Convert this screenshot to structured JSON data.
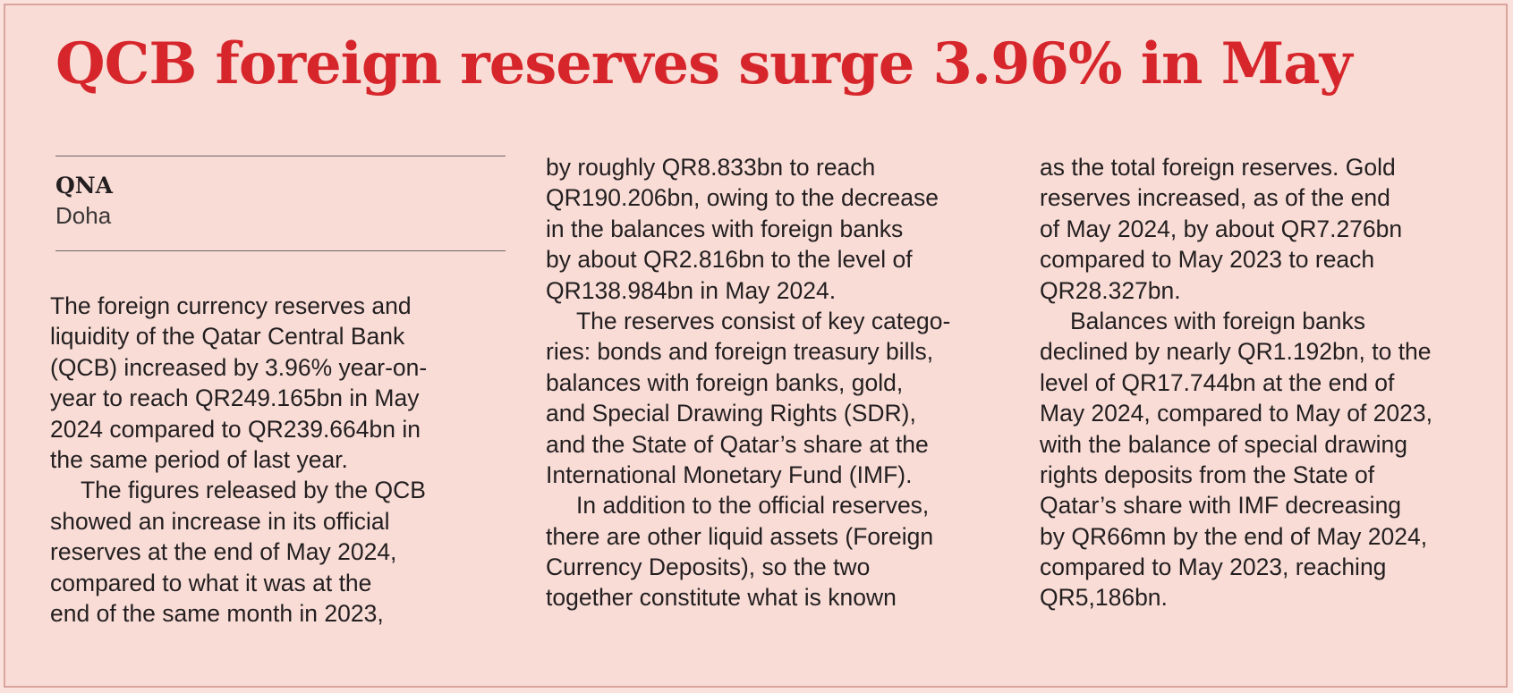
{
  "article": {
    "headline": "QCB foreign reserves surge 3.96% in May",
    "agency": "QNA",
    "dateline": "Doha",
    "columns": [
      [
        {
          "text": "The foreign currency reserves and",
          "indent": false
        },
        {
          "text": "liquidity of the Qatar Central Bank",
          "indent": false
        },
        {
          "text": "(QCB) increased by 3.96% year-on-",
          "indent": false
        },
        {
          "text": "year to reach QR249.165bn in May",
          "indent": false
        },
        {
          "text": "2024 compared to QR239.664bn in",
          "indent": false
        },
        {
          "text": "the same period of last year.",
          "indent": false
        },
        {
          "text": "The figures released by the QCB",
          "indent": true
        },
        {
          "text": "showed an increase in its official",
          "indent": false
        },
        {
          "text": "reserves at the end of May 2024,",
          "indent": false
        },
        {
          "text": "compared to what it was at the",
          "indent": false
        },
        {
          "text": "end of the same month in 2023,",
          "indent": false
        }
      ],
      [
        {
          "text": "by roughly QR8.833bn to reach",
          "indent": false
        },
        {
          "text": "QR190.206bn, owing to the decrease",
          "indent": false
        },
        {
          "text": "in the balances with foreign banks",
          "indent": false
        },
        {
          "text": "by about QR2.816bn to the level of",
          "indent": false
        },
        {
          "text": "QR138.984bn in May 2024.",
          "indent": false
        },
        {
          "text": "The reserves consist of key catego-",
          "indent": true
        },
        {
          "text": "ries: bonds and foreign treasury bills,",
          "indent": false
        },
        {
          "text": "balances with foreign banks, gold,",
          "indent": false
        },
        {
          "text": "and Special Drawing Rights (SDR),",
          "indent": false
        },
        {
          "text": "and the State of Qatar’s share at the",
          "indent": false
        },
        {
          "text": "International Monetary Fund (IMF).",
          "indent": false
        },
        {
          "text": "In addition to the official reserves,",
          "indent": true
        },
        {
          "text": "there are other liquid assets (Foreign",
          "indent": false
        },
        {
          "text": "Currency Deposits), so the two",
          "indent": false
        },
        {
          "text": "together constitute what is known",
          "indent": false
        }
      ],
      [
        {
          "text": "as the total foreign reserves. Gold",
          "indent": false
        },
        {
          "text": "reserves increased, as of the end",
          "indent": false
        },
        {
          "text": "of May 2024, by about QR7.276bn",
          "indent": false
        },
        {
          "text": "compared to May 2023 to reach",
          "indent": false
        },
        {
          "text": "QR28.327bn.",
          "indent": false
        },
        {
          "text": "Balances with foreign banks",
          "indent": true
        },
        {
          "text": "declined by nearly QR1.192bn, to the",
          "indent": false
        },
        {
          "text": "level of QR17.744bn at the end of",
          "indent": false
        },
        {
          "text": "May 2024, compared to May of 2023,",
          "indent": false
        },
        {
          "text": "with the balance of special drawing",
          "indent": false
        },
        {
          "text": "rights deposits from the State of",
          "indent": false
        },
        {
          "text": "Qatar’s share with IMF decreasing",
          "indent": false
        },
        {
          "text": "by QR66mn by the end of May 2024,",
          "indent": false
        },
        {
          "text": "compared to May 2023, reaching",
          "indent": false
        },
        {
          "text": "QR5,186bn.",
          "indent": false
        }
      ]
    ]
  },
  "colors": {
    "background": "#f9dcd6",
    "headline": "#d6262b",
    "text": "#231f20",
    "rule": "#6d6565"
  }
}
